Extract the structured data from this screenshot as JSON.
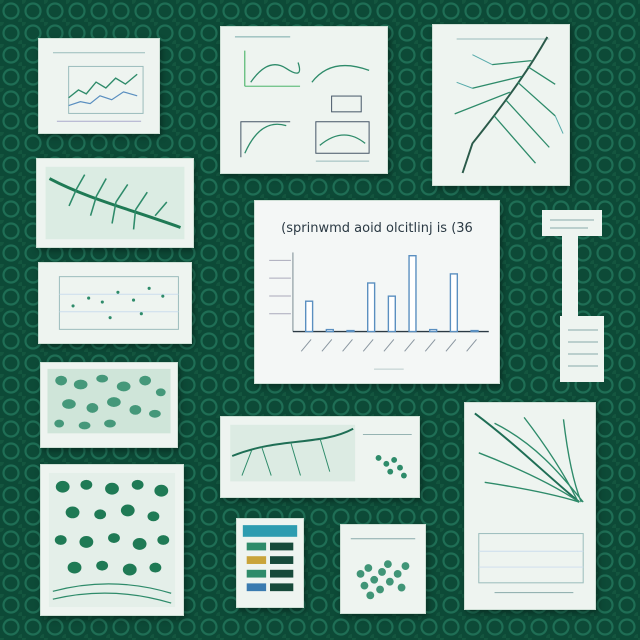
{
  "scene": {
    "description_free": true,
    "colors": {
      "background": "#0d4a37",
      "background_pattern": "#1e6b52",
      "paper": "#eef4f0",
      "ink_green": "#2e8b6a",
      "ink_dark": "#2b3a44",
      "bar_blue": "#5a8fc0"
    }
  },
  "main_chart": {
    "title": "(sprinwmd aoid olcitlinj is (36",
    "chart_data": {
      "type": "bar",
      "categories": [
        "",
        "",
        "",
        "",
        "",
        "",
        "",
        "",
        ""
      ],
      "values": [
        30,
        2,
        1,
        48,
        35,
        75,
        2,
        57,
        1
      ],
      "ylim": [
        0,
        90
      ]
    }
  },
  "cards": [
    {
      "id": "line-chart-small",
      "icon": "line-chart-icon"
    },
    {
      "id": "diagram-sketches",
      "icon": "diagram-icon"
    },
    {
      "id": "leaf-vein-illustration",
      "icon": "leaf-icon"
    },
    {
      "id": "fern-illustration",
      "icon": "fern-icon"
    },
    {
      "id": "scatter-grid-chart",
      "icon": "scatter-icon"
    },
    {
      "id": "cell-pattern-sample",
      "icon": "cells-icon"
    },
    {
      "id": "cell-pattern-large",
      "icon": "cells-icon"
    },
    {
      "id": "leaf-with-samples",
      "icon": "leaf-icon"
    },
    {
      "id": "color-table",
      "icon": "table-icon"
    },
    {
      "id": "cluster-sample",
      "icon": "cluster-icon"
    },
    {
      "id": "grass-and-chart",
      "icon": "grass-icon"
    },
    {
      "id": "tall-tag",
      "icon": "tag-icon"
    }
  ]
}
